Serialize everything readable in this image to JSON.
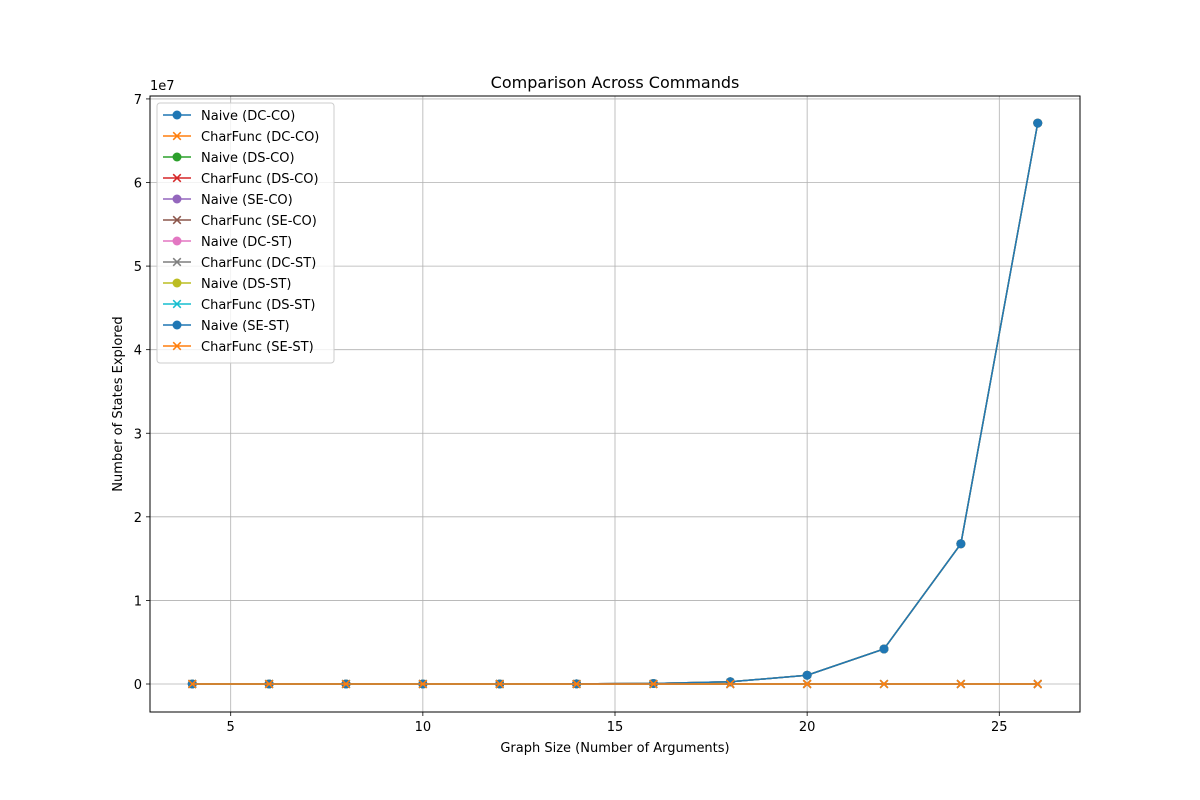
{
  "chart_data": {
    "type": "line",
    "title": "Comparison Across Commands",
    "xlabel": "Graph Size (Number of Arguments)",
    "ylabel": "Number of States Explored",
    "y_offset_label": "1e7",
    "y_scale_factor": 10000000,
    "xlim": [
      2.9,
      27.1
    ],
    "ylim": [
      -3350000,
      70350000
    ],
    "x_ticks": [
      5,
      10,
      15,
      20,
      25
    ],
    "y_ticks": [
      0,
      1,
      2,
      3,
      4,
      5,
      6,
      7
    ],
    "grid": true,
    "legend_position": "upper-left",
    "x": [
      4,
      6,
      8,
      10,
      12,
      14,
      16,
      18,
      20,
      22,
      24,
      26
    ],
    "series": [
      {
        "name": "Naive (DC-CO)",
        "color": "#1f77b4",
        "marker": "circle",
        "values": [
          16,
          64,
          256,
          1024,
          4096,
          16384,
          65536,
          262144,
          1048576,
          4194304,
          16777216,
          67108864
        ]
      },
      {
        "name": "CharFunc (DC-CO)",
        "color": "#ff7f0e",
        "marker": "x",
        "values": [
          5,
          7,
          9,
          11,
          13,
          15,
          17,
          19,
          21,
          23,
          25,
          27
        ]
      },
      {
        "name": "Naive (DS-CO)",
        "color": "#2ca02c",
        "marker": "circle",
        "values": [
          16,
          64,
          256,
          1024,
          4096,
          16384,
          65536,
          262144,
          1048576,
          4194304,
          16777216,
          67108864
        ]
      },
      {
        "name": "CharFunc (DS-CO)",
        "color": "#d62728",
        "marker": "x",
        "values": [
          5,
          7,
          9,
          11,
          13,
          15,
          17,
          19,
          21,
          23,
          25,
          27
        ]
      },
      {
        "name": "Naive (SE-CO)",
        "color": "#9467bd",
        "marker": "circle",
        "values": [
          16,
          64,
          256,
          1024,
          4096,
          16384,
          65536,
          262144,
          1048576,
          4194304,
          16777216,
          67108864
        ]
      },
      {
        "name": "CharFunc (SE-CO)",
        "color": "#8c564b",
        "marker": "x",
        "values": [
          5,
          7,
          9,
          11,
          13,
          15,
          17,
          19,
          21,
          23,
          25,
          27
        ]
      },
      {
        "name": "Naive (DC-ST)",
        "color": "#e377c2",
        "marker": "circle",
        "values": [
          16,
          64,
          256,
          1024,
          4096,
          16384,
          65536,
          262144,
          1048576,
          4194304,
          16777216,
          67108864
        ]
      },
      {
        "name": "CharFunc (DC-ST)",
        "color": "#7f7f7f",
        "marker": "x",
        "values": [
          5,
          7,
          9,
          11,
          13,
          15,
          17,
          19,
          21,
          23,
          25,
          27
        ]
      },
      {
        "name": "Naive (DS-ST)",
        "color": "#bcbd22",
        "marker": "circle",
        "values": [
          16,
          64,
          256,
          1024,
          4096,
          16384,
          65536,
          262144,
          1048576,
          4194304,
          16777216,
          67108864
        ]
      },
      {
        "name": "CharFunc (DS-ST)",
        "color": "#17becf",
        "marker": "x",
        "values": [
          5,
          7,
          9,
          11,
          13,
          15,
          17,
          19,
          21,
          23,
          25,
          27
        ]
      },
      {
        "name": "Naive (SE-ST)",
        "color": "#1f77b4",
        "marker": "circle",
        "values": [
          16,
          64,
          256,
          1024,
          4096,
          16384,
          65536,
          262144,
          1048576,
          4194304,
          16777216,
          67108864
        ]
      },
      {
        "name": "CharFunc (SE-ST)",
        "color": "#ff7f0e",
        "marker": "x",
        "values": [
          5,
          7,
          9,
          11,
          13,
          15,
          17,
          19,
          21,
          23,
          25,
          27
        ]
      }
    ]
  }
}
